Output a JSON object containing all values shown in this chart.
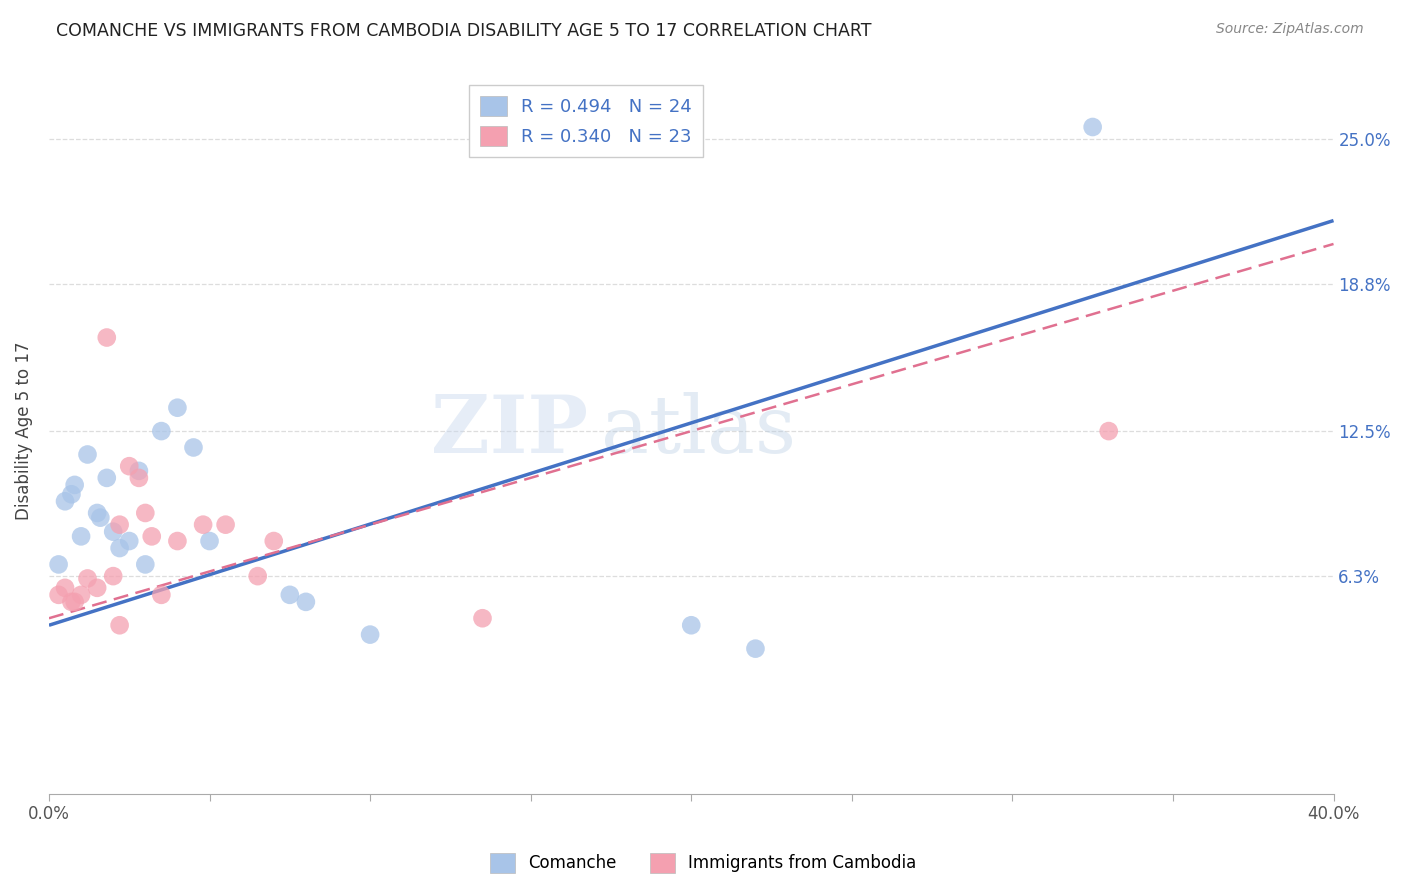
{
  "title": "COMANCHE VS IMMIGRANTS FROM CAMBODIA DISABILITY AGE 5 TO 17 CORRELATION CHART",
  "source": "Source: ZipAtlas.com",
  "ylabel": "Disability Age 5 to 17",
  "ytick_labels": [
    "6.3%",
    "12.5%",
    "18.8%",
    "25.0%"
  ],
  "ytick_values": [
    6.3,
    12.5,
    18.8,
    25.0
  ],
  "xlim": [
    0.0,
    40.0
  ],
  "ylim": [
    -3.0,
    28.0
  ],
  "legend1_r": "R = 0.494",
  "legend1_n": "N = 24",
  "legend2_r": "R = 0.340",
  "legend2_n": "N = 23",
  "watermark": "ZIPatlas",
  "comanche_color": "#a8c4e8",
  "cambodia_color": "#f4a0b0",
  "line_blue": "#4472c4",
  "line_pink": "#e07090",
  "comanche_x": [
    0.3,
    0.5,
    0.7,
    0.8,
    1.0,
    1.2,
    1.5,
    1.6,
    1.8,
    2.0,
    2.2,
    2.5,
    2.8,
    3.0,
    3.5,
    4.0,
    4.5,
    5.0,
    7.5,
    8.0,
    10.0,
    20.0,
    22.0,
    32.5
  ],
  "comanche_y": [
    6.8,
    9.5,
    9.8,
    10.2,
    8.0,
    11.5,
    9.0,
    8.8,
    10.5,
    8.2,
    7.5,
    7.8,
    10.8,
    6.8,
    12.5,
    13.5,
    11.8,
    7.8,
    5.5,
    5.2,
    3.8,
    4.2,
    3.2,
    25.5
  ],
  "cambodia_x": [
    0.3,
    0.5,
    0.7,
    0.8,
    1.0,
    1.2,
    1.5,
    1.8,
    2.0,
    2.2,
    2.5,
    2.8,
    3.0,
    3.2,
    3.5,
    4.0,
    4.8,
    5.5,
    6.5,
    7.0,
    13.5,
    2.2,
    33.0
  ],
  "cambodia_y": [
    5.5,
    5.8,
    5.2,
    5.2,
    5.5,
    6.2,
    5.8,
    16.5,
    6.3,
    8.5,
    11.0,
    10.5,
    9.0,
    8.0,
    5.5,
    7.8,
    8.5,
    8.5,
    6.3,
    7.8,
    4.5,
    4.2,
    12.5
  ],
  "line_blue_y0": 4.2,
  "line_blue_y40": 21.5,
  "line_pink_y0": 4.5,
  "line_pink_y40": 20.5
}
